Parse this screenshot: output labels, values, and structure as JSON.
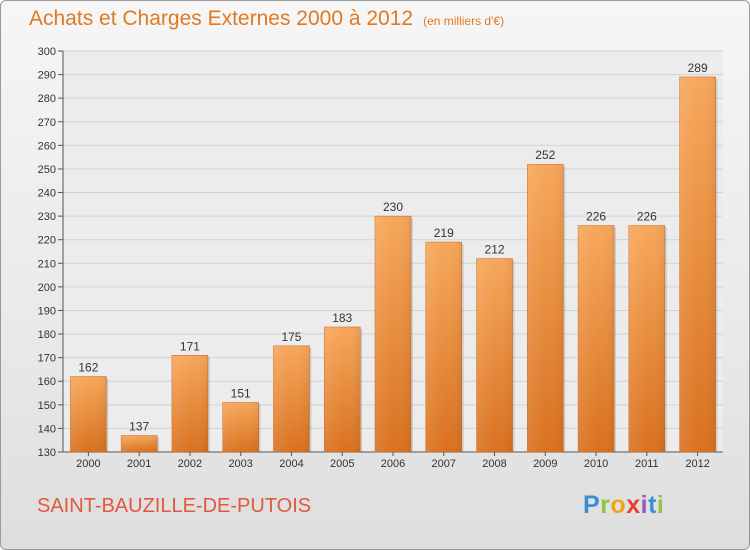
{
  "header": {
    "title": "Achats et Charges Externes 2000 à 2012",
    "unit": "(en milliers d'€)"
  },
  "footer": {
    "commune": "SAINT-BAUZILLE-DE-PUTOIS",
    "logo": "Proxiti"
  },
  "colors": {
    "title": "#e07a22",
    "bar_light": "#f7a75a",
    "bar_dark": "#d9711f",
    "commune": "#e2583e"
  },
  "chart_data": {
    "type": "bar",
    "title": "Achats et Charges Externes 2000 à 2012",
    "xlabel": "",
    "ylabel": "",
    "categories": [
      "2000",
      "2001",
      "2002",
      "2003",
      "2004",
      "2005",
      "2006",
      "2007",
      "2008",
      "2009",
      "2010",
      "2011",
      "2012"
    ],
    "values": [
      162,
      137,
      171,
      151,
      175,
      183,
      230,
      219,
      212,
      252,
      226,
      226,
      289
    ],
    "ylim": [
      130,
      300
    ],
    "yticks": [
      130,
      140,
      150,
      160,
      170,
      180,
      190,
      200,
      210,
      220,
      230,
      240,
      250,
      260,
      270,
      280,
      290,
      300
    ],
    "grid": true,
    "legend": "none"
  }
}
